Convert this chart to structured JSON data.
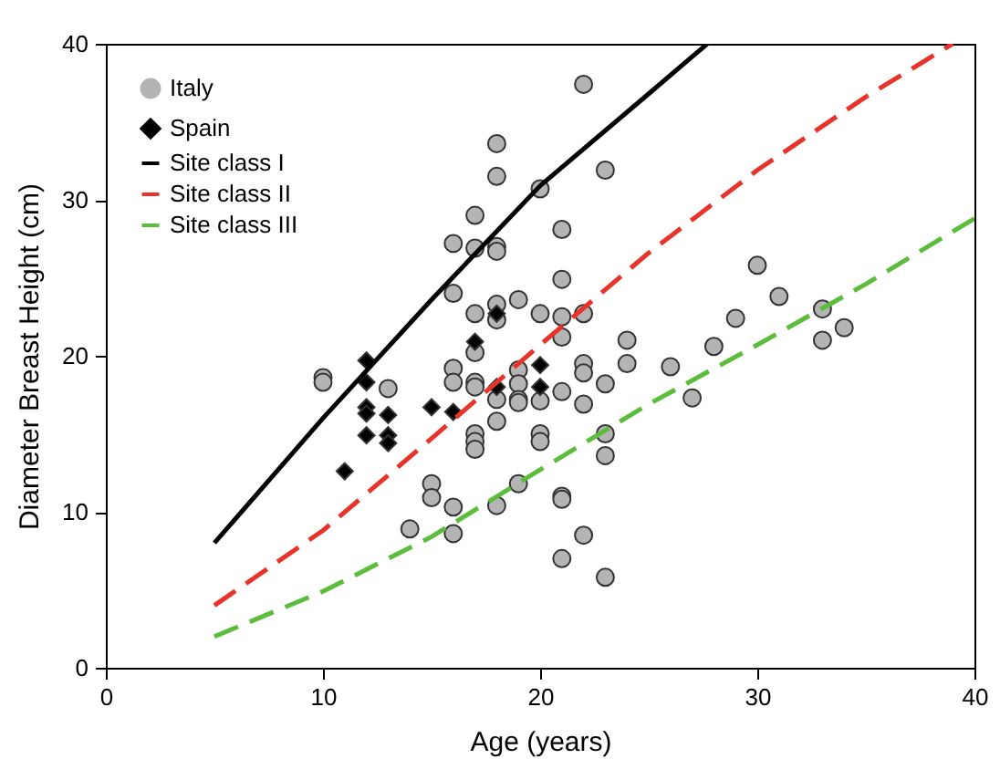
{
  "chart_data": {
    "type": "scatter",
    "xlabel": "Age (years)",
    "ylabel": "Diameter Breast Height (cm)",
    "xlim": [
      0,
      40
    ],
    "xticks": [
      0,
      10,
      20,
      30,
      40
    ],
    "ylim": [
      0,
      40
    ],
    "yticks": [
      0,
      10,
      20,
      30,
      40
    ],
    "legend": "top left",
    "series": [
      {
        "name": "Italy",
        "marker": "circle",
        "color": "#b4b4b4",
        "x": [
          10,
          10,
          13,
          14,
          15,
          15,
          16,
          16,
          16,
          16,
          16,
          16,
          17,
          17,
          17,
          17,
          17,
          17,
          17,
          17,
          17,
          18,
          18,
          18,
          18,
          18,
          18,
          18,
          18,
          18,
          19,
          19,
          19,
          19,
          19,
          19,
          20,
          20,
          20,
          20,
          20,
          21,
          21,
          21,
          21,
          21,
          21,
          21,
          21,
          22,
          22,
          22,
          22,
          22,
          22,
          23,
          23,
          23,
          23,
          23,
          24,
          24,
          26,
          27,
          28,
          29,
          30,
          31,
          33,
          33,
          34
        ],
        "values": [
          18.6,
          18.3,
          17.9,
          8.9,
          11.8,
          10.9,
          27.2,
          24.0,
          19.2,
          18.3,
          10.3,
          8.6,
          29.0,
          26.9,
          22.7,
          20.2,
          18.3,
          18.0,
          15.0,
          14.5,
          14.0,
          33.6,
          31.5,
          27.0,
          26.7,
          23.3,
          22.3,
          17.2,
          15.8,
          10.4,
          23.6,
          19.1,
          18.2,
          17.2,
          17.0,
          11.8,
          30.7,
          22.7,
          17.1,
          15.0,
          14.5,
          28.1,
          24.9,
          22.5,
          21.2,
          17.7,
          11.0,
          10.8,
          7.0,
          37.4,
          22.7,
          19.5,
          18.9,
          16.9,
          8.5,
          31.9,
          18.2,
          15.0,
          13.6,
          5.8,
          21.0,
          19.5,
          19.3,
          17.3,
          20.6,
          22.4,
          25.8,
          23.8,
          23.0,
          21.0,
          21.8
        ]
      },
      {
        "name": "Spain",
        "marker": "diamond",
        "color": "#000000",
        "x": [
          11,
          12,
          12,
          12,
          12,
          12,
          13,
          13,
          13,
          15,
          16,
          17,
          18,
          18,
          20,
          20
        ],
        "values": [
          12.6,
          19.7,
          18.3,
          16.7,
          16.3,
          14.9,
          16.2,
          14.9,
          14.4,
          16.7,
          16.4,
          20.9,
          22.7,
          18.0,
          19.4,
          18.0
        ]
      },
      {
        "name": "Site class I",
        "type": "line",
        "line_style": "solid",
        "color": "#000000",
        "x": [
          5,
          10,
          15,
          20,
          25,
          27.7
        ],
        "values": [
          8,
          16,
          23.6,
          30.9,
          36.8,
          40
        ]
      },
      {
        "name": "Site class II",
        "type": "line",
        "line_style": "dashed",
        "color": "#e8332a",
        "x": [
          5,
          10,
          15,
          20,
          25,
          30,
          35,
          39
        ],
        "values": [
          4,
          8.8,
          14.7,
          20.7,
          26.6,
          31.9,
          36.6,
          40
        ]
      },
      {
        "name": "Site class III",
        "type": "line",
        "line_style": "dashed",
        "color": "#5cbd3c",
        "x": [
          5,
          10,
          15,
          20,
          25,
          30,
          35,
          40
        ],
        "values": [
          2,
          4.9,
          8.4,
          12.7,
          16.9,
          20.7,
          24.6,
          28.8
        ]
      }
    ]
  }
}
